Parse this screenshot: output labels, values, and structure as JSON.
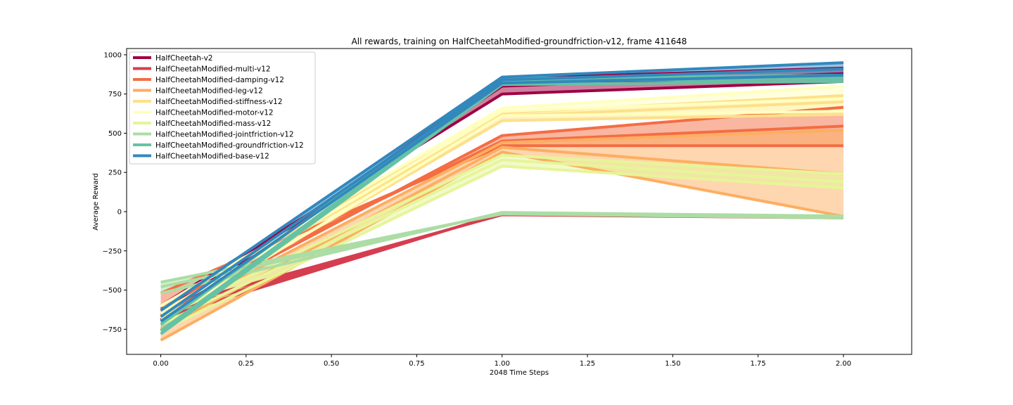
{
  "chart_data": {
    "type": "line",
    "title": "All rewards, training on HalfCheetahModified-groundfriction-v12, frame 411648",
    "xlabel": "2048 Time Steps",
    "ylabel": "Average Reward",
    "xlim": [
      -0.1,
      2.2
    ],
    "ylim": [
      -910,
      1040
    ],
    "xticks": [
      0.0,
      0.25,
      0.5,
      0.75,
      1.0,
      1.25,
      1.5,
      1.75,
      2.0
    ],
    "xtick_labels": [
      "0.00",
      "0.25",
      "0.50",
      "0.75",
      "1.00",
      "1.25",
      "1.50",
      "1.75",
      "2.00"
    ],
    "yticks": [
      -750,
      -500,
      -250,
      0,
      250,
      500,
      750,
      1000
    ],
    "ytick_labels": [
      "−750",
      "−500",
      "−250",
      "0",
      "250",
      "500",
      "750",
      "1000"
    ],
    "grid": false,
    "legend_position": "top-left",
    "x": [
      0,
      1,
      2
    ],
    "series": [
      {
        "name": "HalfCheetah-v2",
        "color": "#9e0142",
        "values": [
          [
            -600,
            750,
            830
          ],
          [
            -640,
            800,
            880
          ],
          [
            -690,
            850,
            915
          ]
        ]
      },
      {
        "name": "HalfCheetahModified-multi-v12",
        "color": "#d53e4f",
        "values": [
          [
            -620,
            -20,
            -40
          ],
          [
            -650,
            -15,
            -35
          ],
          [
            -680,
            -10,
            -30
          ]
        ]
      },
      {
        "name": "HalfCheetahModified-damping-v12",
        "color": "#f46d43",
        "values": [
          [
            -520,
            420,
            420
          ],
          [
            -600,
            450,
            545
          ],
          [
            -660,
            485,
            665
          ]
        ]
      },
      {
        "name": "HalfCheetahModified-leg-v12",
        "color": "#fdae61",
        "values": [
          [
            -820,
            380,
            -30
          ],
          [
            -750,
            410,
            240
          ],
          [
            -680,
            440,
            520
          ]
        ]
      },
      {
        "name": "HalfCheetahModified-stiffness-v12",
        "color": "#fee08b",
        "values": [
          [
            -680,
            580,
            620
          ],
          [
            -640,
            610,
            700
          ],
          [
            -600,
            630,
            740
          ]
        ]
      },
      {
        "name": "HalfCheetahModified-motor-v12",
        "color": "#ffffbf",
        "values": [
          [
            -700,
            610,
            640
          ],
          [
            -650,
            640,
            720
          ],
          [
            -600,
            660,
            800
          ]
        ]
      },
      {
        "name": "HalfCheetahModified-mass-v12",
        "color": "#e6f598",
        "values": [
          [
            -760,
            290,
            150
          ],
          [
            -720,
            330,
            190
          ],
          [
            -680,
            360,
            240
          ]
        ]
      },
      {
        "name": "HalfCheetahModified-jointfriction-v12",
        "color": "#abdda4",
        "values": [
          [
            -450,
            -15,
            -40
          ],
          [
            -480,
            -10,
            -35
          ],
          [
            -520,
            -5,
            -28
          ]
        ]
      },
      {
        "name": "HalfCheetahModified-groundfriction-v12",
        "color": "#66c2a5",
        "values": [
          [
            -780,
            810,
            830
          ],
          [
            -760,
            830,
            850
          ],
          [
            -720,
            850,
            870
          ]
        ]
      },
      {
        "name": "HalfCheetahModified-base-v12",
        "color": "#3288bd",
        "values": [
          [
            -700,
            820,
            870
          ],
          [
            -670,
            840,
            910
          ],
          [
            -630,
            858,
            950
          ]
        ]
      }
    ]
  }
}
